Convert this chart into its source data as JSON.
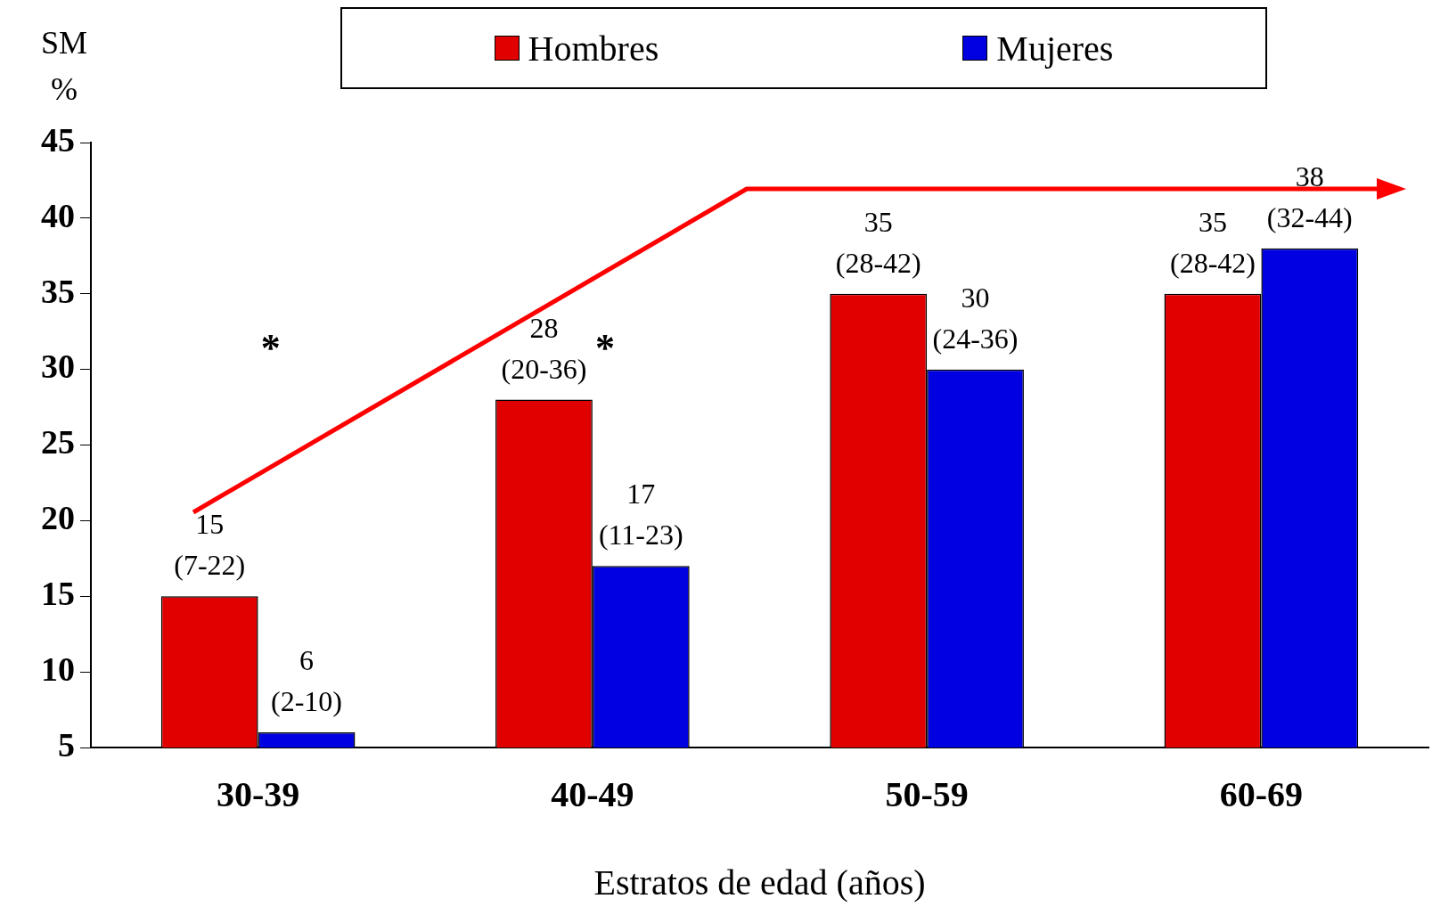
{
  "chart_data": {
    "type": "bar",
    "ylabel": "SM\n%",
    "xlabel": "Estratos de edad (años)",
    "categories": [
      "30-39",
      "40-49",
      "50-59",
      "60-69"
    ],
    "series": [
      {
        "name": "Hombres",
        "color": "#e00000",
        "values": [
          15,
          28,
          35,
          35
        ],
        "value_labels": [
          "15\n(7-22)",
          "28\n(20-36)",
          "35\n(28-42)",
          "35\n(28-42)"
        ]
      },
      {
        "name": "Mujeres",
        "color": "#0000e0",
        "values": [
          6,
          17,
          30,
          38
        ],
        "value_labels": [
          "6\n(2-10)",
          "17\n(11-23)",
          "30\n(24-36)",
          "38\n(32-44)"
        ]
      }
    ],
    "ylim": [
      5,
      45
    ],
    "yticks": [
      5,
      10,
      15,
      20,
      25,
      30,
      35,
      40,
      45
    ],
    "grid": false,
    "legend": "top",
    "annotations": [
      "*",
      "*"
    ]
  }
}
